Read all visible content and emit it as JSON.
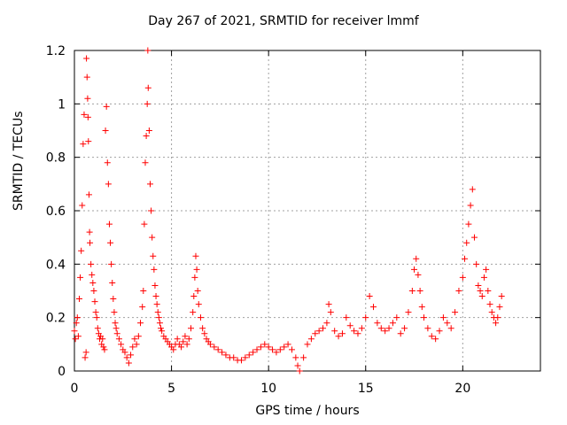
{
  "chart_data": {
    "type": "scatter",
    "title": "Day 267 of 2021, SRMTID for receiver lmmf",
    "xlabel": "GPS time / hours",
    "ylabel": "SRMTID / TECUs",
    "xlim": [
      0,
      24
    ],
    "ylim": [
      0,
      1.2
    ],
    "xticks": [
      0,
      5,
      10,
      15,
      20
    ],
    "xtick_labels": [
      "0",
      "5",
      "10",
      "15",
      "20"
    ],
    "yticks": [
      0,
      0.2,
      0.4,
      0.6,
      0.8,
      1.0,
      1.2
    ],
    "ytick_labels": [
      "0",
      "0.2",
      "0.4",
      "0.6",
      "0.8",
      "1",
      "1.2"
    ],
    "grid": true,
    "marker": "+",
    "color": "#ff0000",
    "series": [
      {
        "name": "SRMTID",
        "points": [
          [
            0.0,
            0.15
          ],
          [
            0.05,
            0.12
          ],
          [
            0.1,
            0.18
          ],
          [
            0.15,
            0.2
          ],
          [
            0.2,
            0.13
          ],
          [
            0.25,
            0.27
          ],
          [
            0.3,
            0.35
          ],
          [
            0.35,
            0.45
          ],
          [
            0.4,
            0.62
          ],
          [
            0.45,
            0.85
          ],
          [
            0.5,
            0.96
          ],
          [
            0.55,
            0.05
          ],
          [
            0.6,
            0.07
          ],
          [
            0.62,
            1.17
          ],
          [
            0.65,
            1.1
          ],
          [
            0.68,
            1.02
          ],
          [
            0.7,
            0.95
          ],
          [
            0.72,
            0.86
          ],
          [
            0.75,
            0.66
          ],
          [
            0.78,
            0.52
          ],
          [
            0.8,
            0.48
          ],
          [
            0.85,
            0.4
          ],
          [
            0.9,
            0.36
          ],
          [
            0.95,
            0.33
          ],
          [
            1.0,
            0.3
          ],
          [
            1.05,
            0.26
          ],
          [
            1.1,
            0.22
          ],
          [
            1.15,
            0.2
          ],
          [
            1.2,
            0.16
          ],
          [
            1.25,
            0.14
          ],
          [
            1.3,
            0.12
          ],
          [
            1.35,
            0.13
          ],
          [
            1.4,
            0.1
          ],
          [
            1.45,
            0.12
          ],
          [
            1.5,
            0.09
          ],
          [
            1.55,
            0.08
          ],
          [
            1.6,
            0.9
          ],
          [
            1.65,
            0.99
          ],
          [
            1.7,
            0.78
          ],
          [
            1.75,
            0.7
          ],
          [
            1.8,
            0.55
          ],
          [
            1.85,
            0.48
          ],
          [
            1.9,
            0.4
          ],
          [
            1.95,
            0.33
          ],
          [
            2.0,
            0.27
          ],
          [
            2.05,
            0.22
          ],
          [
            2.1,
            0.18
          ],
          [
            2.15,
            0.16
          ],
          [
            2.2,
            0.14
          ],
          [
            2.3,
            0.12
          ],
          [
            2.4,
            0.1
          ],
          [
            2.5,
            0.08
          ],
          [
            2.6,
            0.07
          ],
          [
            2.7,
            0.05
          ],
          [
            2.8,
            0.03
          ],
          [
            2.9,
            0.06
          ],
          [
            3.0,
            0.09
          ],
          [
            3.1,
            0.12
          ],
          [
            3.2,
            0.1
          ],
          [
            3.3,
            0.13
          ],
          [
            3.4,
            0.18
          ],
          [
            3.5,
            0.24
          ],
          [
            3.55,
            0.3
          ],
          [
            3.6,
            0.55
          ],
          [
            3.65,
            0.78
          ],
          [
            3.7,
            0.88
          ],
          [
            3.75,
            1.0
          ],
          [
            3.78,
            1.2
          ],
          [
            3.8,
            1.06
          ],
          [
            3.85,
            0.9
          ],
          [
            3.9,
            0.7
          ],
          [
            3.95,
            0.6
          ],
          [
            4.0,
            0.5
          ],
          [
            4.05,
            0.43
          ],
          [
            4.1,
            0.38
          ],
          [
            4.15,
            0.32
          ],
          [
            4.2,
            0.28
          ],
          [
            4.25,
            0.25
          ],
          [
            4.3,
            0.22
          ],
          [
            4.35,
            0.2
          ],
          [
            4.4,
            0.18
          ],
          [
            4.45,
            0.16
          ],
          [
            4.5,
            0.15
          ],
          [
            4.6,
            0.13
          ],
          [
            4.7,
            0.12
          ],
          [
            4.8,
            0.11
          ],
          [
            4.9,
            0.1
          ],
          [
            5.0,
            0.09
          ],
          [
            5.1,
            0.08
          ],
          [
            5.2,
            0.1
          ],
          [
            5.3,
            0.12
          ],
          [
            5.4,
            0.1
          ],
          [
            5.5,
            0.09
          ],
          [
            5.6,
            0.11
          ],
          [
            5.7,
            0.13
          ],
          [
            5.8,
            0.1
          ],
          [
            5.9,
            0.12
          ],
          [
            6.0,
            0.16
          ],
          [
            6.1,
            0.22
          ],
          [
            6.15,
            0.28
          ],
          [
            6.2,
            0.35
          ],
          [
            6.25,
            0.43
          ],
          [
            6.3,
            0.38
          ],
          [
            6.35,
            0.3
          ],
          [
            6.4,
            0.25
          ],
          [
            6.5,
            0.2
          ],
          [
            6.6,
            0.16
          ],
          [
            6.7,
            0.14
          ],
          [
            6.8,
            0.12
          ],
          [
            6.9,
            0.11
          ],
          [
            7.0,
            0.1
          ],
          [
            7.2,
            0.09
          ],
          [
            7.4,
            0.08
          ],
          [
            7.6,
            0.07
          ],
          [
            7.8,
            0.06
          ],
          [
            8.0,
            0.05
          ],
          [
            8.2,
            0.05
          ],
          [
            8.4,
            0.04
          ],
          [
            8.6,
            0.04
          ],
          [
            8.8,
            0.05
          ],
          [
            9.0,
            0.06
          ],
          [
            9.2,
            0.07
          ],
          [
            9.4,
            0.08
          ],
          [
            9.6,
            0.09
          ],
          [
            9.8,
            0.1
          ],
          [
            10.0,
            0.09
          ],
          [
            10.2,
            0.08
          ],
          [
            10.4,
            0.07
          ],
          [
            10.6,
            0.08
          ],
          [
            10.8,
            0.09
          ],
          [
            11.0,
            0.1
          ],
          [
            11.2,
            0.08
          ],
          [
            11.4,
            0.05
          ],
          [
            11.5,
            0.02
          ],
          [
            11.6,
            0.0
          ],
          [
            11.8,
            0.05
          ],
          [
            12.0,
            0.1
          ],
          [
            12.2,
            0.12
          ],
          [
            12.4,
            0.14
          ],
          [
            12.6,
            0.15
          ],
          [
            12.8,
            0.16
          ],
          [
            13.0,
            0.18
          ],
          [
            13.1,
            0.25
          ],
          [
            13.2,
            0.22
          ],
          [
            13.4,
            0.15
          ],
          [
            13.6,
            0.13
          ],
          [
            13.8,
            0.14
          ],
          [
            14.0,
            0.2
          ],
          [
            14.2,
            0.17
          ],
          [
            14.4,
            0.15
          ],
          [
            14.6,
            0.14
          ],
          [
            14.8,
            0.16
          ],
          [
            15.0,
            0.2
          ],
          [
            15.2,
            0.28
          ],
          [
            15.4,
            0.24
          ],
          [
            15.6,
            0.18
          ],
          [
            15.8,
            0.16
          ],
          [
            16.0,
            0.15
          ],
          [
            16.2,
            0.16
          ],
          [
            16.4,
            0.18
          ],
          [
            16.6,
            0.2
          ],
          [
            16.8,
            0.14
          ],
          [
            17.0,
            0.16
          ],
          [
            17.2,
            0.22
          ],
          [
            17.4,
            0.3
          ],
          [
            17.5,
            0.38
          ],
          [
            17.6,
            0.42
          ],
          [
            17.7,
            0.36
          ],
          [
            17.8,
            0.3
          ],
          [
            17.9,
            0.24
          ],
          [
            18.0,
            0.2
          ],
          [
            18.2,
            0.16
          ],
          [
            18.4,
            0.13
          ],
          [
            18.6,
            0.12
          ],
          [
            18.8,
            0.15
          ],
          [
            19.0,
            0.2
          ],
          [
            19.2,
            0.18
          ],
          [
            19.4,
            0.16
          ],
          [
            19.6,
            0.22
          ],
          [
            19.8,
            0.3
          ],
          [
            20.0,
            0.35
          ],
          [
            20.1,
            0.42
          ],
          [
            20.2,
            0.48
          ],
          [
            20.3,
            0.55
          ],
          [
            20.4,
            0.62
          ],
          [
            20.5,
            0.68
          ],
          [
            20.6,
            0.5
          ],
          [
            20.7,
            0.4
          ],
          [
            20.8,
            0.32
          ],
          [
            20.9,
            0.3
          ],
          [
            21.0,
            0.28
          ],
          [
            21.1,
            0.35
          ],
          [
            21.2,
            0.38
          ],
          [
            21.3,
            0.3
          ],
          [
            21.4,
            0.25
          ],
          [
            21.5,
            0.22
          ],
          [
            21.6,
            0.2
          ],
          [
            21.7,
            0.18
          ],
          [
            21.8,
            0.2
          ],
          [
            21.9,
            0.24
          ],
          [
            22.0,
            0.28
          ]
        ]
      }
    ]
  }
}
